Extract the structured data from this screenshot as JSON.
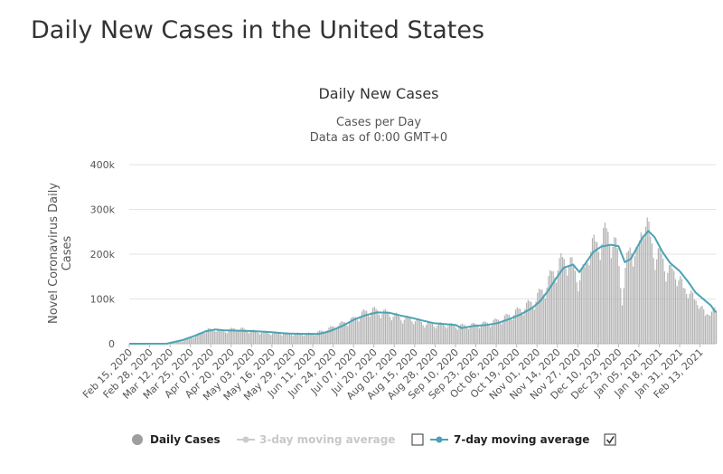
{
  "page": {
    "title": "Daily New Cases in the United States"
  },
  "chart_data": {
    "type": "bar",
    "title": "Daily New Cases",
    "subtitle_line1": "Cases per Day",
    "subtitle_line2": "Data as of 0:00 GMT+0",
    "ylabel_line1": "Novel Coronavirus Daily",
    "ylabel_line2": "Cases",
    "xlabel": "",
    "ylim": [
      0,
      400000
    ],
    "yticks": [
      0,
      100000,
      200000,
      300000,
      400000
    ],
    "ytick_labels": [
      "0",
      "100k",
      "200k",
      "300k",
      "400k"
    ],
    "grid": true,
    "legend_position": "bottom",
    "x_start": "2020-02-15",
    "x_end": "2021-02-23",
    "x_tick_labels": [
      "Feb 15, 2020",
      "Feb 28, 2020",
      "Mar 12, 2020",
      "Mar 25, 2020",
      "Apr 07, 2020",
      "Apr 20, 2020",
      "May 03, 2020",
      "May 16, 2020",
      "May 29, 2020",
      "Jun 11, 2020",
      "Jun 24, 2020",
      "Jul 07, 2020",
      "Jul 20, 2020",
      "Aug 02, 2020",
      "Aug 15, 2020",
      "Aug 28, 2020",
      "Sep 10, 2020",
      "Sep 23, 2020",
      "Oct 06, 2020",
      "Oct 19, 2020",
      "Nov 01, 2020",
      "Nov 14, 2020",
      "Nov 27, 2020",
      "Dec 10, 2020",
      "Dec 23, 2020",
      "Jan 05, 2021",
      "Jan 18, 2021",
      "Jan 31, 2021",
      "Feb 13, 2021"
    ],
    "series": [
      {
        "name": "Daily Cases",
        "visible": true,
        "color": "#b3b3b3",
        "points": [
          [
            "2020-02-15",
            0
          ],
          [
            "2020-03-01",
            50
          ],
          [
            "2020-03-12",
            450
          ],
          [
            "2020-03-18",
            4500
          ],
          [
            "2020-03-24",
            11000
          ],
          [
            "2020-03-28",
            19000
          ],
          [
            "2020-04-01",
            26000
          ],
          [
            "2020-04-04",
            33000
          ],
          [
            "2020-04-07",
            31000
          ],
          [
            "2020-04-10",
            34000
          ],
          [
            "2020-04-14",
            27000
          ],
          [
            "2020-04-18",
            31000
          ],
          [
            "2020-04-24",
            35000
          ],
          [
            "2020-05-01",
            30000
          ],
          [
            "2020-05-08",
            27000
          ],
          [
            "2020-05-15",
            25000
          ],
          [
            "2020-05-22",
            24000
          ],
          [
            "2020-05-29",
            23000
          ],
          [
            "2020-06-05",
            22000
          ],
          [
            "2020-06-12",
            24000
          ],
          [
            "2020-06-19",
            31000
          ],
          [
            "2020-06-24",
            39000
          ],
          [
            "2020-06-30",
            47000
          ],
          [
            "2020-07-06",
            55000
          ],
          [
            "2020-07-11",
            66000
          ],
          [
            "2020-07-17",
            77000
          ],
          [
            "2020-07-24",
            73000
          ],
          [
            "2020-07-31",
            67000
          ],
          [
            "2020-08-07",
            58000
          ],
          [
            "2020-08-14",
            56000
          ],
          [
            "2020-08-21",
            46000
          ],
          [
            "2020-08-28",
            44000
          ],
          [
            "2020-09-04",
            44000
          ],
          [
            "2020-09-11",
            40000
          ],
          [
            "2020-09-18",
            42000
          ],
          [
            "2020-09-25",
            44000
          ],
          [
            "2020-10-02",
            48000
          ],
          [
            "2020-10-09",
            56000
          ],
          [
            "2020-10-16",
            68000
          ],
          [
            "2020-10-23",
            82000
          ],
          [
            "2020-10-30",
            98000
          ],
          [
            "2020-11-06",
            130000
          ],
          [
            "2020-11-13",
            175000
          ],
          [
            "2020-11-20",
            195000
          ],
          [
            "2020-11-27",
            150000
          ],
          [
            "2020-12-01",
            165000
          ],
          [
            "2020-12-04",
            225000
          ],
          [
            "2020-12-08",
            220000
          ],
          [
            "2020-12-11",
            240000
          ],
          [
            "2020-12-16",
            250000
          ],
          [
            "2020-12-18",
            245000
          ],
          [
            "2020-12-22",
            205000
          ],
          [
            "2020-12-25",
            110000
          ],
          [
            "2020-12-28",
            185000
          ],
          [
            "2020-12-31",
            230000
          ],
          [
            "2021-01-04",
            195000
          ],
          [
            "2021-01-08",
            302000
          ],
          [
            "2021-01-12",
            230000
          ],
          [
            "2021-01-16",
            205000
          ],
          [
            "2021-01-20",
            190000
          ],
          [
            "2021-01-25",
            160000
          ],
          [
            "2021-01-29",
            165000
          ],
          [
            "2021-02-02",
            120000
          ],
          [
            "2021-02-05",
            130000
          ],
          [
            "2021-02-09",
            95000
          ],
          [
            "2021-02-12",
            100000
          ],
          [
            "2021-02-16",
            60000
          ],
          [
            "2021-02-19",
            80000
          ],
          [
            "2021-02-23",
            72000
          ]
        ]
      },
      {
        "name": "3-day moving average",
        "visible": false,
        "color": "#c8c8c8",
        "points": []
      },
      {
        "name": "7-day moving average",
        "visible": true,
        "color": "#4aa3b5",
        "points": [
          [
            "2020-02-15",
            0
          ],
          [
            "2020-03-10",
            300
          ],
          [
            "2020-03-20",
            8000
          ],
          [
            "2020-03-28",
            18000
          ],
          [
            "2020-04-04",
            28000
          ],
          [
            "2020-04-10",
            32000
          ],
          [
            "2020-04-15",
            30000
          ],
          [
            "2020-04-25",
            29000
          ],
          [
            "2020-05-05",
            28000
          ],
          [
            "2020-05-15",
            26000
          ],
          [
            "2020-05-25",
            23000
          ],
          [
            "2020-06-05",
            22000
          ],
          [
            "2020-06-15",
            22000
          ],
          [
            "2020-06-22",
            28000
          ],
          [
            "2020-06-30",
            40000
          ],
          [
            "2020-07-08",
            55000
          ],
          [
            "2020-07-15",
            64000
          ],
          [
            "2020-07-22",
            70000
          ],
          [
            "2020-07-30",
            69000
          ],
          [
            "2020-08-06",
            63000
          ],
          [
            "2020-08-13",
            58000
          ],
          [
            "2020-08-20",
            52000
          ],
          [
            "2020-08-27",
            46000
          ],
          [
            "2020-09-03",
            44000
          ],
          [
            "2020-09-10",
            42000
          ],
          [
            "2020-09-14",
            35000
          ],
          [
            "2020-09-22",
            40000
          ],
          [
            "2020-09-30",
            42000
          ],
          [
            "2020-10-07",
            46000
          ],
          [
            "2020-10-15",
            56000
          ],
          [
            "2020-10-22",
            66000
          ],
          [
            "2020-10-29",
            80000
          ],
          [
            "2020-11-03",
            95000
          ],
          [
            "2020-11-08",
            118000
          ],
          [
            "2020-11-13",
            145000
          ],
          [
            "2020-11-18",
            170000
          ],
          [
            "2020-11-24",
            177000
          ],
          [
            "2020-11-28",
            160000
          ],
          [
            "2020-12-02",
            180000
          ],
          [
            "2020-12-07",
            205000
          ],
          [
            "2020-12-12",
            217000
          ],
          [
            "2020-12-18",
            221000
          ],
          [
            "2020-12-23",
            218000
          ],
          [
            "2020-12-27",
            182000
          ],
          [
            "2020-12-31",
            190000
          ],
          [
            "2021-01-03",
            210000
          ],
          [
            "2021-01-07",
            235000
          ],
          [
            "2021-01-11",
            252000
          ],
          [
            "2021-01-15",
            238000
          ],
          [
            "2021-01-20",
            205000
          ],
          [
            "2021-01-25",
            180000
          ],
          [
            "2021-01-31",
            162000
          ],
          [
            "2021-02-05",
            140000
          ],
          [
            "2021-02-10",
            115000
          ],
          [
            "2021-02-15",
            100000
          ],
          [
            "2021-02-20",
            85000
          ],
          [
            "2021-02-23",
            70000
          ]
        ]
      }
    ],
    "legend": {
      "items": [
        {
          "label": "Daily Cases",
          "marker": "circle",
          "active": true
        },
        {
          "label": "3-day moving average",
          "marker": "line-dot",
          "active": false,
          "checked": false
        },
        {
          "label": "7-day moving average",
          "marker": "line-dot",
          "active": true,
          "checked": true
        }
      ]
    }
  }
}
